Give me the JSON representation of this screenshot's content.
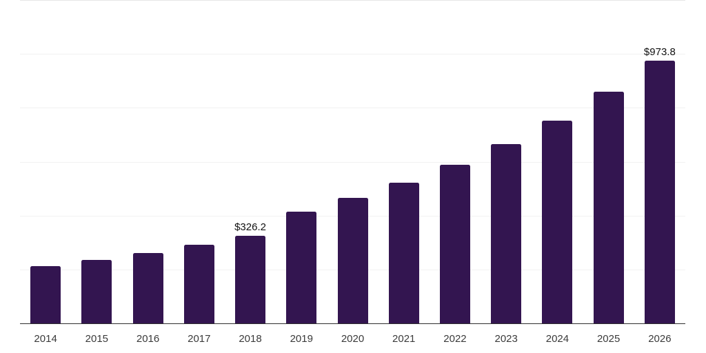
{
  "chart_data": {
    "type": "bar",
    "title": "",
    "xlabel": "",
    "ylabel": "",
    "categories": [
      "2014",
      "2015",
      "2016",
      "2017",
      "2018",
      "2019",
      "2020",
      "2021",
      "2022",
      "2023",
      "2024",
      "2025",
      "2026"
    ],
    "values": [
      211.4,
      234.6,
      261.0,
      291.2,
      326.2,
      414.9,
      466.4,
      522.0,
      588.3,
      665.5,
      752.7,
      858.5,
      973.8
    ],
    "bar_labels": [
      "",
      "",
      "",
      "",
      "$326.2",
      "",
      "",
      "",
      "",
      "",
      "",
      "",
      "$973.8"
    ],
    "ylim": [
      0,
      1200
    ],
    "grid_step": 200,
    "grid": true,
    "legend": false,
    "currency_prefix": "$"
  },
  "style": {
    "bar_color": "#331550",
    "axis_line_color": "#2e2e2e",
    "gridline_color": "#f1f1f1",
    "top_gridline_color": "#e6e6e6",
    "tick_label_color": "#3a3a3a",
    "value_label_color": "#111111",
    "background_color": "#ffffff"
  }
}
